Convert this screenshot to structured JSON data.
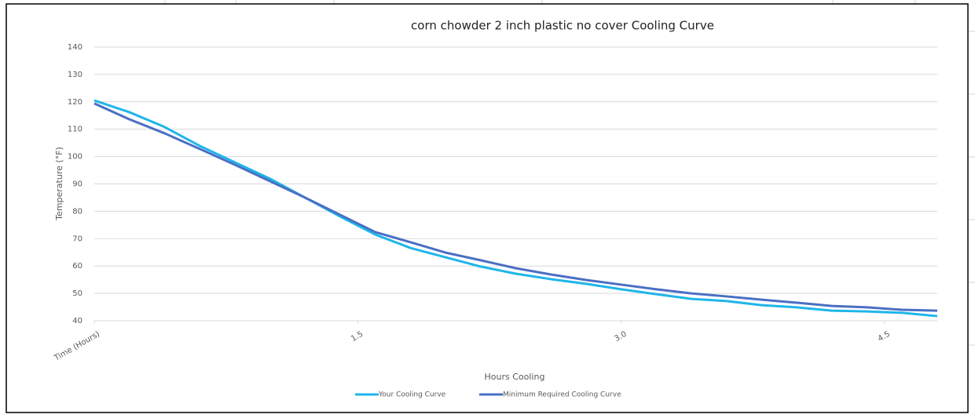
{
  "chart_data": {
    "type": "line",
    "title": "corn chowder 2 inch plastic no cover Cooling Curve",
    "x_label": "Hours Cooling",
    "y_label": "Temperature (°F)",
    "x": [
      0,
      0.2,
      0.4,
      0.6,
      0.8,
      1.0,
      1.2,
      1.4,
      1.6,
      1.8,
      2.0,
      2.2,
      2.4,
      2.6,
      2.8,
      3.0,
      3.2,
      3.4,
      3.6,
      3.8,
      4.0,
      4.2,
      4.4,
      4.6,
      4.8
    ],
    "series": [
      {
        "name": "Your Cooling Curve",
        "color": "#1fb5ea",
        "values": [
          120.5,
          116.2,
          110.8,
          103.9,
          97.9,
          91.9,
          85,
          78.1,
          71.5,
          66.6,
          63.2,
          59.8,
          57.2,
          55.2,
          53.5,
          51.5,
          49.7,
          48,
          47.2,
          45.7,
          44.9,
          43.7,
          43.4,
          42.9,
          41.7
        ]
      },
      {
        "name": "Minimum Required Cooling Curve",
        "color": "#4a6fc4",
        "values": [
          119.4,
          113.6,
          108.5,
          102.8,
          97,
          91,
          85,
          78.7,
          72.4,
          68.7,
          64.9,
          62.1,
          59.2,
          56.9,
          54.9,
          53.2,
          51.5,
          50,
          48.9,
          47.7,
          46.6,
          45.4,
          44.9,
          44,
          43.7
        ]
      }
    ],
    "xlim": [
      0,
      4.8
    ],
    "xticks": [
      {
        "value": 0,
        "label": "Time (Hours)"
      },
      1.5,
      {
        "value": 3,
        "label": "3.0"
      },
      4.5
    ],
    "ylim": [
      40,
      140
    ],
    "yticks": [
      40,
      50,
      60,
      70,
      80,
      90,
      100,
      110,
      120,
      130,
      140
    ],
    "grid": true,
    "legend": "bottom"
  }
}
